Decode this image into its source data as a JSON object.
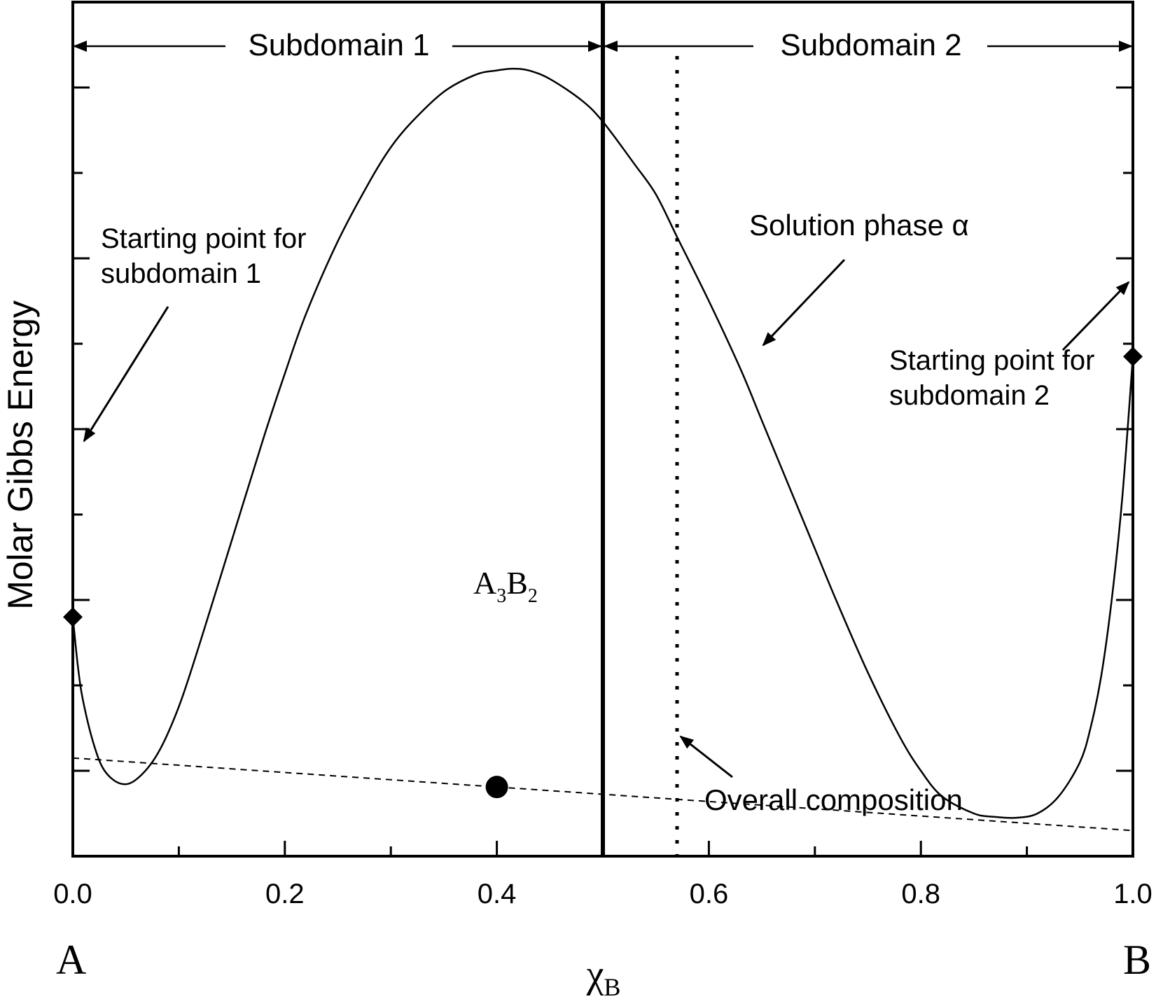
{
  "chart_data": {
    "type": "line",
    "title": "",
    "xlabel": "χ",
    "xlabel_sub": "B",
    "ylabel": "Molar Gibbs Energy",
    "xlim": [
      0,
      1
    ],
    "ylim": [
      0,
      1
    ],
    "x_ticks": [
      0.0,
      0.1,
      0.2,
      0.3,
      0.4,
      0.5,
      0.6,
      0.7,
      0.8,
      0.9,
      1.0
    ],
    "x_tick_labels": [
      "0.0",
      "0.2",
      "0.4",
      "0.6",
      "0.8",
      "1.0"
    ],
    "x_tick_label_values": [
      0.0,
      0.2,
      0.4,
      0.6,
      0.8,
      1.0
    ],
    "y_ticks": [
      0.1,
      0.2,
      0.3,
      0.4,
      0.5,
      0.6,
      0.7,
      0.8,
      0.9
    ],
    "end_labels": {
      "left": "A",
      "right": "B"
    },
    "subdomain_divider_x": 0.5,
    "overall_composition_x": 0.57,
    "grid": false,
    "series": [
      {
        "id": "solution_phase_alpha",
        "style": "solid",
        "x": [
          0.0,
          0.005,
          0.01,
          0.02,
          0.03,
          0.045,
          0.06,
          0.08,
          0.1,
          0.12,
          0.15,
          0.18,
          0.2,
          0.22,
          0.25,
          0.28,
          0.3,
          0.32,
          0.35,
          0.38,
          0.4,
          0.415,
          0.43,
          0.45,
          0.48,
          0.5,
          0.53,
          0.55,
          0.57,
          0.6,
          0.63,
          0.65,
          0.68,
          0.7,
          0.72,
          0.75,
          0.78,
          0.8,
          0.82,
          0.85,
          0.87,
          0.89,
          0.91,
          0.93,
          0.95,
          0.96,
          0.97,
          0.98,
          0.99,
          1.0
        ],
        "y": [
          0.28,
          0.22,
          0.18,
          0.13,
          0.1,
          0.085,
          0.09,
          0.12,
          0.175,
          0.25,
          0.37,
          0.49,
          0.565,
          0.635,
          0.72,
          0.79,
          0.83,
          0.86,
          0.895,
          0.915,
          0.92,
          0.922,
          0.92,
          0.91,
          0.885,
          0.86,
          0.81,
          0.775,
          0.725,
          0.65,
          0.57,
          0.51,
          0.42,
          0.36,
          0.3,
          0.215,
          0.14,
          0.1,
          0.07,
          0.05,
          0.046,
          0.045,
          0.05,
          0.07,
          0.11,
          0.15,
          0.21,
          0.3,
          0.42,
          0.585
        ]
      },
      {
        "id": "common_tangent",
        "style": "dashed",
        "x": [
          0.0,
          1.0
        ],
        "y": [
          0.115,
          0.03
        ]
      }
    ],
    "points": [
      {
        "id": "A3B2",
        "x": 0.4,
        "y": 0.081
      }
    ],
    "start_markers": [
      {
        "id": "start-1",
        "x": 0.0,
        "y": 0.28
      },
      {
        "id": "start-2",
        "x": 1.0,
        "y": 0.585
      }
    ],
    "annotations": {
      "subdomain1": "Subdomain 1",
      "subdomain2": "Subdomain 2",
      "start1_line1": "Starting point for",
      "start1_line2": "subdomain 1",
      "start2_line1": "Starting point for",
      "start2_line2": "subdomain 2",
      "solution_phase": "Solution phase α",
      "overall_composition": "Overall composition",
      "compound_A": "A",
      "compound_sub3": "3",
      "compound_B": "B",
      "compound_sub2": "2"
    }
  }
}
